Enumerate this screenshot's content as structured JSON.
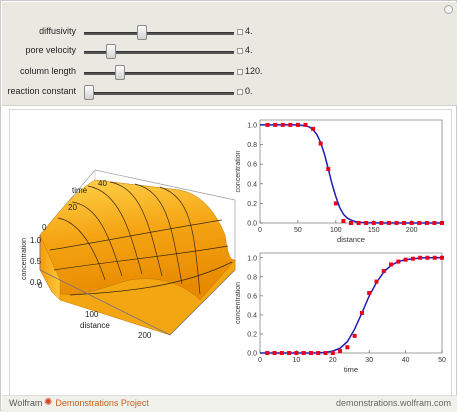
{
  "controls": [
    {
      "label": "diffusivity",
      "value": "4.",
      "fraction": 0.38
    },
    {
      "label": "pore velocity",
      "value": "4.",
      "fraction": 0.16
    },
    {
      "label": "column length",
      "value": "120.",
      "fraction": 0.22
    },
    {
      "label": "reaction constant",
      "value": "0.",
      "fraction": 0.0
    }
  ],
  "plot3d": {
    "axis_time_label": "time",
    "axis_time_ticks": [
      "0",
      "20",
      "40"
    ],
    "axis_conc_label": "concentration",
    "axis_conc_ticks": [
      "0.0",
      "0.5",
      "1.0"
    ],
    "axis_dist_label": "distance",
    "axis_dist_ticks": [
      "0",
      "100",
      "200"
    ]
  },
  "chart_data": [
    {
      "type": "line",
      "title": "",
      "xlabel": "distance",
      "ylabel": "concentration",
      "xlim": [
        0,
        240
      ],
      "ylim": [
        0,
        1.05
      ],
      "xticks": [
        "0",
        "50",
        "100",
        "150",
        "200"
      ],
      "yticks": [
        "0.0",
        "0.2",
        "0.4",
        "0.6",
        "0.8",
        "1.0"
      ],
      "series": [
        {
          "kind": "line",
          "color": "#1d1db5",
          "x": [
            0,
            10,
            20,
            30,
            40,
            50,
            60,
            65,
            70,
            75,
            80,
            85,
            90,
            95,
            100,
            105,
            110,
            115,
            120,
            125,
            130,
            140,
            160,
            180,
            200,
            220,
            240
          ],
          "y": [
            1,
            1,
            1,
            1,
            1,
            1,
            0.99,
            0.98,
            0.95,
            0.9,
            0.82,
            0.7,
            0.55,
            0.4,
            0.27,
            0.16,
            0.09,
            0.05,
            0.03,
            0.015,
            0.008,
            0.002,
            0,
            0,
            0,
            0,
            0
          ]
        },
        {
          "kind": "points",
          "color": "#e8001c",
          "x": [
            10,
            20,
            30,
            40,
            50,
            60,
            70,
            80,
            90,
            100,
            110,
            120,
            130,
            140,
            150,
            160,
            170,
            180,
            190,
            200,
            210,
            220,
            230,
            240
          ],
          "y": [
            1,
            1,
            1,
            1,
            1,
            1,
            0.96,
            0.81,
            0.55,
            0.2,
            0.02,
            0,
            0,
            0,
            0,
            0,
            0,
            0,
            0,
            0,
            0,
            0,
            0,
            0
          ]
        }
      ]
    },
    {
      "type": "line",
      "title": "",
      "xlabel": "time",
      "ylabel": "concentration",
      "xlim": [
        0,
        50
      ],
      "ylim": [
        0,
        1.05
      ],
      "xticks": [
        "0",
        "10",
        "20",
        "30",
        "40",
        "50"
      ],
      "yticks": [
        "0.0",
        "0.2",
        "0.4",
        "0.6",
        "0.8",
        "1.0"
      ],
      "series": [
        {
          "kind": "line",
          "color": "#1d1db5",
          "x": [
            0,
            5,
            10,
            15,
            18,
            20,
            22,
            24,
            26,
            28,
            30,
            32,
            34,
            36,
            38,
            40,
            42,
            45,
            50
          ],
          "y": [
            0,
            0,
            0,
            0,
            0.005,
            0.02,
            0.05,
            0.12,
            0.25,
            0.42,
            0.6,
            0.74,
            0.85,
            0.92,
            0.96,
            0.98,
            0.99,
            1,
            1
          ]
        },
        {
          "kind": "points",
          "color": "#e8001c",
          "x": [
            2,
            4,
            6,
            8,
            10,
            12,
            14,
            16,
            18,
            20,
            22,
            24,
            26,
            28,
            30,
            32,
            34,
            36,
            38,
            40,
            42,
            44,
            46,
            48,
            50
          ],
          "y": [
            0,
            0,
            0,
            0,
            0,
            0,
            0,
            0,
            0,
            0,
            0.02,
            0.06,
            0.18,
            0.42,
            0.63,
            0.75,
            0.86,
            0.93,
            0.96,
            0.98,
            0.99,
            1,
            1,
            1,
            1
          ]
        }
      ]
    }
  ],
  "footer": {
    "brand_wolfram": "Wolfram",
    "brand_project": "Demonstrations Project",
    "site": "demonstrations.wolfram.com"
  }
}
